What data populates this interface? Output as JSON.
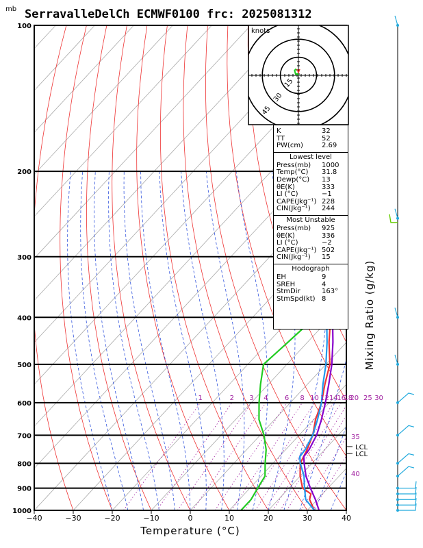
{
  "header": {
    "unit_mb": "mb",
    "title": "SerravalleDelCh ECMWF0100 frc: 2025081312"
  },
  "axes": {
    "xlabel": "Temperature (°C)",
    "mixing_ratio_label": "Mixing Ratio (g/kg)"
  },
  "chart_data": {
    "type": "line",
    "x_range": [
      -40,
      40
    ],
    "p_range": [
      1000,
      100
    ],
    "x_ticks": [
      "−40",
      "−30",
      "−20",
      "−10",
      "0",
      "10",
      "20",
      "30",
      "40"
    ],
    "p_ticks": [
      "100",
      "200",
      "300",
      "400",
      "500",
      "600",
      "700",
      "800",
      "900",
      "1000"
    ],
    "series": [
      {
        "key": "temperature",
        "color": "#ee3333",
        "points": [
          [
            1000,
            31.8
          ],
          [
            950,
            28
          ],
          [
            925,
            27
          ],
          [
            900,
            23.5
          ],
          [
            850,
            20
          ],
          [
            800,
            17
          ],
          [
            750,
            15.5
          ],
          [
            700,
            13.5
          ],
          [
            650,
            10.5
          ],
          [
            600,
            8
          ],
          [
            550,
            4.5
          ],
          [
            500,
            1
          ],
          [
            450,
            -4.5
          ],
          [
            400,
            -10
          ],
          [
            350,
            -14
          ],
          [
            300,
            -22
          ],
          [
            250,
            -29
          ],
          [
            200,
            -38
          ],
          [
            150,
            -48
          ],
          [
            100,
            -62
          ]
        ]
      },
      {
        "key": "dewpoint",
        "color": "#22cc22",
        "points": [
          [
            1000,
            13
          ],
          [
            950,
            13
          ],
          [
            900,
            12
          ],
          [
            850,
            11
          ],
          [
            800,
            8
          ],
          [
            750,
            5
          ],
          [
            700,
            1
          ],
          [
            650,
            -4
          ],
          [
            600,
            -8
          ],
          [
            550,
            -12
          ],
          [
            500,
            -16
          ],
          [
            450,
            -15
          ],
          [
            400,
            -14
          ],
          [
            350,
            -23
          ],
          [
            300,
            -33
          ],
          [
            250,
            -46
          ],
          [
            200,
            -58
          ],
          [
            150,
            -70
          ],
          [
            100,
            -86
          ]
        ]
      },
      {
        "key": "parcel",
        "color": "#2299ee",
        "points": [
          [
            1000,
            31.8
          ],
          [
            950,
            27
          ],
          [
            900,
            24
          ],
          [
            850,
            21
          ],
          [
            800,
            17
          ],
          [
            775,
            15.3
          ],
          [
            750,
            15
          ],
          [
            700,
            13.5
          ],
          [
            650,
            11
          ],
          [
            600,
            8
          ],
          [
            550,
            4
          ],
          [
            500,
            0
          ],
          [
            450,
            -5
          ],
          [
            400,
            -11
          ],
          [
            350,
            -18
          ],
          [
            300,
            -27
          ],
          [
            250,
            -38
          ],
          [
            200,
            -52
          ],
          [
            150,
            -66
          ],
          [
            100,
            -85
          ]
        ]
      },
      {
        "key": "virtual_temperature",
        "color": "#8800cc",
        "points": [
          [
            1000,
            33
          ],
          [
            950,
            29.5
          ],
          [
            900,
            25.5
          ],
          [
            850,
            21.5
          ],
          [
            800,
            18
          ],
          [
            775,
            16.3
          ],
          [
            750,
            16
          ],
          [
            700,
            14.5
          ],
          [
            650,
            12
          ],
          [
            600,
            9
          ],
          [
            550,
            5.5
          ],
          [
            500,
            1.5
          ],
          [
            450,
            -3.5
          ],
          [
            400,
            -9.5
          ],
          [
            350,
            -16.5
          ],
          [
            300,
            -25
          ],
          [
            250,
            -36
          ],
          [
            200,
            -49
          ],
          [
            150,
            -63
          ],
          [
            100,
            -80
          ]
        ]
      }
    ],
    "mixing_ratio_labels": [
      "1",
      "2",
      "3",
      "4",
      "6",
      "8",
      "10",
      "12",
      "14",
      "16",
      "18",
      "20",
      "25",
      "30"
    ],
    "height_labels": [
      "35",
      "40"
    ],
    "lcl_labels": [
      "LCL",
      "LCL"
    ]
  },
  "hodograph": {
    "unit": "knots",
    "ring_labels": [
      "15",
      "30",
      "45"
    ],
    "trace": [
      [
        0,
        0
      ],
      [
        -2,
        3
      ],
      [
        -5,
        2
      ],
      [
        -6,
        5
      ],
      [
        -7,
        9
      ],
      [
        -5,
        11
      ],
      [
        -2,
        9
      ]
    ]
  },
  "indices": {
    "rows": [
      {
        "label": "K",
        "value": "32"
      },
      {
        "label": "TT",
        "value": "52"
      },
      {
        "label": "PW(cm)",
        "value": "2.69"
      }
    ]
  },
  "lowest_level": {
    "heading": "Lowest level",
    "rows": [
      {
        "label": "Press(mb)",
        "value": "1000"
      },
      {
        "label": "Temp(°C)",
        "value": "31.8"
      },
      {
        "label": "Dewp(°C)",
        "value": "13"
      },
      {
        "label": "θE(K)",
        "value": "333"
      },
      {
        "label": "LI  (°C)",
        "value": "−1"
      },
      {
        "label": "CAPE(Jkg⁻¹)",
        "value": "228"
      },
      {
        "label": "CIN(Jkg⁻¹)",
        "value": "244"
      }
    ]
  },
  "most_unstable": {
    "heading": "Most Unstable",
    "rows": [
      {
        "label": "Press(mb)",
        "value": "925"
      },
      {
        "label": "θE(K)",
        "value": "336"
      },
      {
        "label": "LI  (°C)",
        "value": "−2"
      },
      {
        "label": "CAPE(Jkg⁻¹)",
        "value": "502"
      },
      {
        "label": "CIN(Jkg⁻¹)",
        "value": "15"
      }
    ]
  },
  "hodograph_panel": {
    "heading": "Hodograph",
    "rows": [
      {
        "label": "EH",
        "value": "9"
      },
      {
        "label": "SREH",
        "value": "4"
      },
      {
        "label": "StmDir",
        "value": "163°"
      },
      {
        "label": "StmSpd(kt)",
        "value": "8"
      }
    ]
  },
  "wind_barbs": {
    "levels": [
      1000,
      975,
      950,
      925,
      900,
      850,
      800,
      700,
      600,
      500,
      400,
      250,
      100
    ]
  }
}
